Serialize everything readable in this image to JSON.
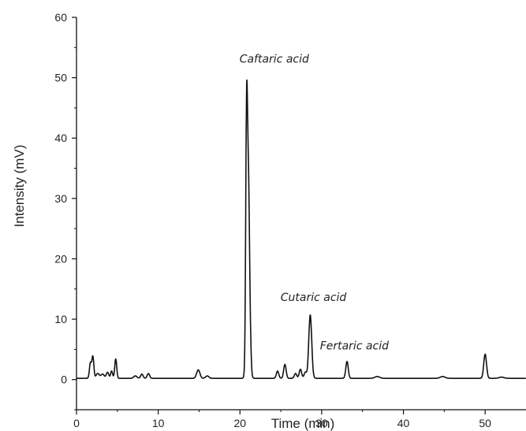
{
  "chart_data": {
    "type": "line",
    "xlabel": "Time (min)",
    "ylabel": "Intensity (mV)",
    "xlim": [
      0,
      55
    ],
    "ylim": [
      -5,
      60
    ],
    "x_ticks": [
      0,
      10,
      20,
      30,
      40,
      50
    ],
    "y_ticks": [
      0,
      10,
      20,
      30,
      40,
      50,
      60
    ],
    "grid": false,
    "baseline": 0.2,
    "peaks": [
      {
        "t": 1.7,
        "h": 2.5,
        "w": 0.12
      },
      {
        "t": 2.0,
        "h": 3.6,
        "w": 0.12
      },
      {
        "t": 2.6,
        "h": 0.8,
        "w": 0.2
      },
      {
        "t": 3.2,
        "h": 0.7,
        "w": 0.2
      },
      {
        "t": 3.8,
        "h": 1.0,
        "w": 0.15
      },
      {
        "t": 4.3,
        "h": 1.2,
        "w": 0.12
      },
      {
        "t": 4.8,
        "h": 3.2,
        "w": 0.12
      },
      {
        "t": 7.2,
        "h": 0.4,
        "w": 0.2
      },
      {
        "t": 8.0,
        "h": 0.7,
        "w": 0.15
      },
      {
        "t": 8.8,
        "h": 0.8,
        "w": 0.15
      },
      {
        "t": 14.9,
        "h": 1.4,
        "w": 0.2
      },
      {
        "t": 16.0,
        "h": 0.4,
        "w": 0.2
      },
      {
        "t": 20.8,
        "h": 28.0,
        "w": 0.1
      },
      {
        "t": 21.0,
        "h": 35.0,
        "w": 0.18
      },
      {
        "t": 24.6,
        "h": 1.2,
        "w": 0.15
      },
      {
        "t": 25.5,
        "h": 2.3,
        "w": 0.15
      },
      {
        "t": 26.8,
        "h": 0.8,
        "w": 0.15
      },
      {
        "t": 27.4,
        "h": 1.5,
        "w": 0.15
      },
      {
        "t": 28.0,
        "h": 1.0,
        "w": 0.15
      },
      {
        "t": 28.6,
        "h": 10.5,
        "w": 0.18
      },
      {
        "t": 33.1,
        "h": 2.8,
        "w": 0.15
      },
      {
        "t": 36.8,
        "h": 0.3,
        "w": 0.3
      },
      {
        "t": 44.8,
        "h": 0.3,
        "w": 0.3
      },
      {
        "t": 50.0,
        "h": 4.0,
        "w": 0.17
      },
      {
        "t": 52.0,
        "h": 0.2,
        "w": 0.3
      }
    ],
    "annotations": [
      {
        "text": "Caftaric acid",
        "x": 24.2,
        "y": 52.5
      },
      {
        "text": "Cutaric acid",
        "x": 29.0,
        "y": 13.0
      },
      {
        "text": "Fertaric acid",
        "x": 34.0,
        "y": 5.0
      }
    ]
  }
}
